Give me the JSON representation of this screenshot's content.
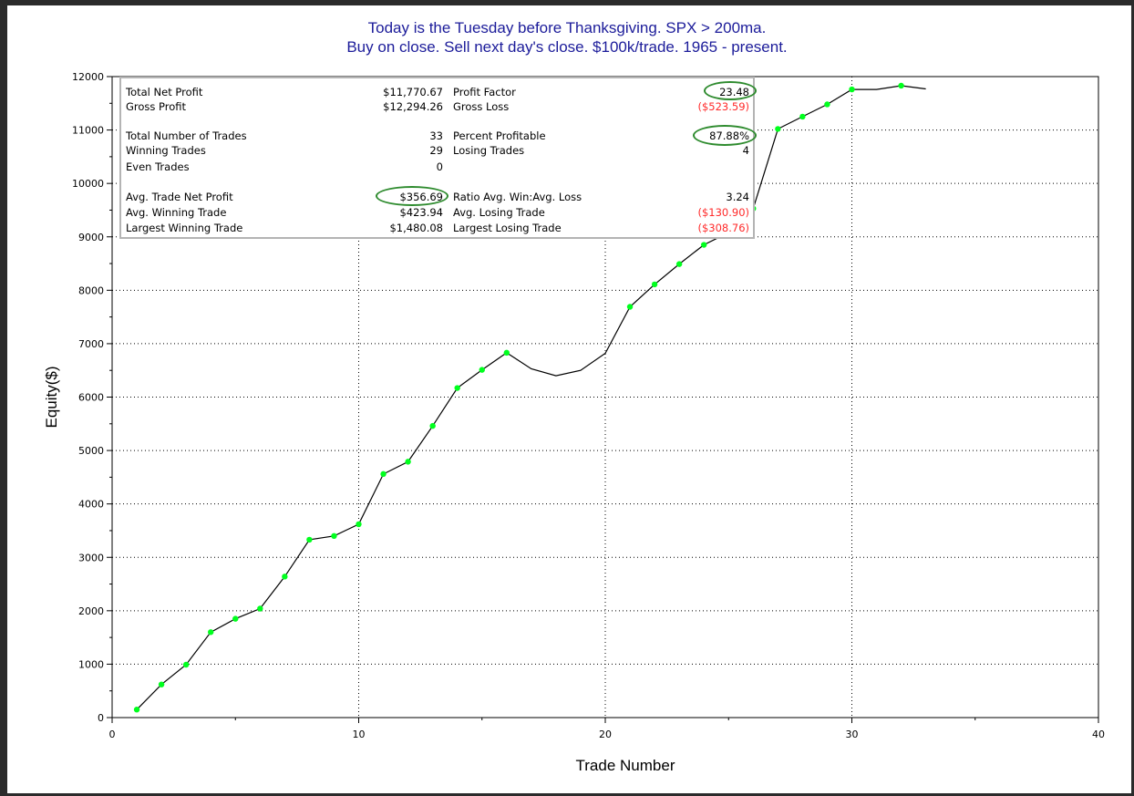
{
  "title_lines": [
    "Today is the Tuesday before Thanksgiving. SPX > 200ma.",
    "Buy on close. Sell next day's close. $100k/trade. 1965 - present."
  ],
  "colors": {
    "title": "#1c1c9a",
    "line": "#000000",
    "marker": "#00ff1e",
    "negative": "#ff2a2a",
    "highlight_oval": "#2e8b2e"
  },
  "stats": {
    "rows": [
      {
        "left_label": "Total Net Profit",
        "left_value": "$11,770.67",
        "right_label": "Profit Factor",
        "right_value": "23.48",
        "right_negative": false
      },
      {
        "left_label": "Gross Profit",
        "left_value": "$12,294.26",
        "right_label": "Gross Loss",
        "right_value": "($523.59)",
        "right_negative": true
      },
      {
        "left_label": "Total Number of Trades",
        "left_value": "33",
        "right_label": "Percent Profitable",
        "right_value": "87.88%",
        "right_negative": false
      },
      {
        "left_label": "Winning Trades",
        "left_value": "29",
        "right_label": "Losing Trades",
        "right_value": "4",
        "right_negative": false
      },
      {
        "left_label": "Even Trades",
        "left_value": "0",
        "right_label": "",
        "right_value": "",
        "right_negative": false
      },
      {
        "left_label": "Avg. Trade Net Profit",
        "left_value": "$356.69",
        "right_label": "Ratio Avg. Win:Avg. Loss",
        "right_value": "3.24",
        "right_negative": false
      },
      {
        "left_label": "Avg. Winning Trade",
        "left_value": "$423.94",
        "right_label": "Avg. Losing Trade",
        "right_value": "($130.90)",
        "right_negative": true
      },
      {
        "left_label": "Largest Winning Trade",
        "left_value": "$1,480.08",
        "right_label": "Largest Losing Trade",
        "right_value": "($308.76)",
        "right_negative": true
      }
    ],
    "highlighted": [
      "23.48",
      "87.88%",
      "$356.69"
    ]
  },
  "chart_data": {
    "type": "line",
    "title": "Today is the Tuesday before Thanksgiving. SPX > 200ma. Buy on close. Sell next day's close. $100k/trade. 1965 - present.",
    "xlabel": "Trade Number",
    "ylabel": "Equity($)",
    "xlim": [
      0,
      40
    ],
    "ylim": [
      0,
      12000
    ],
    "xticks": [
      0,
      10,
      20,
      30,
      40
    ],
    "yticks": [
      0,
      1000,
      2000,
      3000,
      4000,
      5000,
      6000,
      7000,
      8000,
      9000,
      10000,
      11000,
      12000
    ],
    "grid": true,
    "x": [
      1,
      2,
      3,
      4,
      5,
      6,
      7,
      8,
      9,
      10,
      11,
      12,
      13,
      14,
      15,
      16,
      17,
      18,
      19,
      20,
      21,
      22,
      23,
      24,
      25,
      26,
      27,
      28,
      29,
      30,
      31,
      32,
      33
    ],
    "y": [
      150,
      620,
      990,
      1600,
      1850,
      2040,
      2640,
      3330,
      3400,
      3620,
      4560,
      4790,
      5460,
      6170,
      6510,
      6830,
      6530,
      6400,
      6500,
      6820,
      7690,
      8110,
      8490,
      8850,
      9080,
      9530,
      11020,
      11250,
      11480,
      11760,
      11760,
      11830,
      11770
    ],
    "markers": [
      true,
      true,
      true,
      true,
      true,
      true,
      true,
      true,
      true,
      true,
      true,
      true,
      true,
      true,
      true,
      true,
      false,
      false,
      false,
      false,
      true,
      true,
      true,
      true,
      true,
      true,
      true,
      true,
      true,
      true,
      false,
      true,
      false
    ]
  }
}
